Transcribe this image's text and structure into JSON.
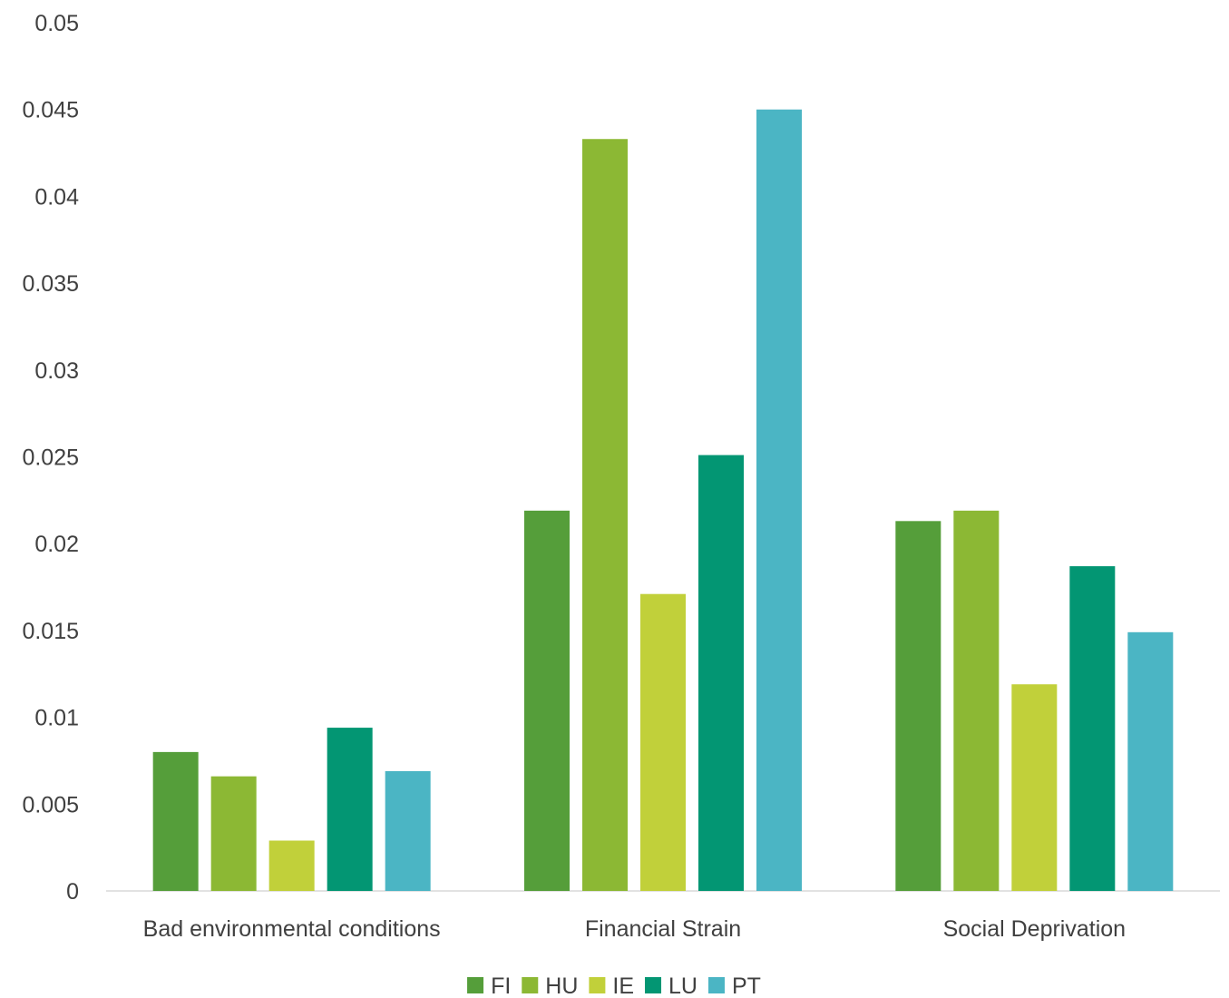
{
  "chart_data": {
    "type": "bar",
    "title": "",
    "xlabel": "",
    "ylabel": "",
    "ylim": [
      0,
      0.05
    ],
    "yticks": [
      "0",
      "0.005",
      "0.01",
      "0.015",
      "0.02",
      "0.025",
      "0.03",
      "0.035",
      "0.04",
      "0.045",
      "0.05"
    ],
    "grid": false,
    "legend_position": "bottom",
    "categories": [
      "Bad environmental conditions",
      "Financial Strain",
      "Social Deprivation"
    ],
    "series": [
      {
        "name": "FI",
        "color": "#559E3A",
        "values": [
          0.008,
          0.0219,
          0.0213
        ]
      },
      {
        "name": "HU",
        "color": "#8CB834",
        "values": [
          0.0066,
          0.0433,
          0.0219
        ]
      },
      {
        "name": "IE",
        "color": "#C1D03A",
        "values": [
          0.0029,
          0.0171,
          0.0119
        ]
      },
      {
        "name": "LU",
        "color": "#039673",
        "values": [
          0.0094,
          0.0251,
          0.0187
        ]
      },
      {
        "name": "PT",
        "color": "#4BB5C4",
        "values": [
          0.0069,
          0.045,
          0.0149
        ]
      }
    ]
  }
}
